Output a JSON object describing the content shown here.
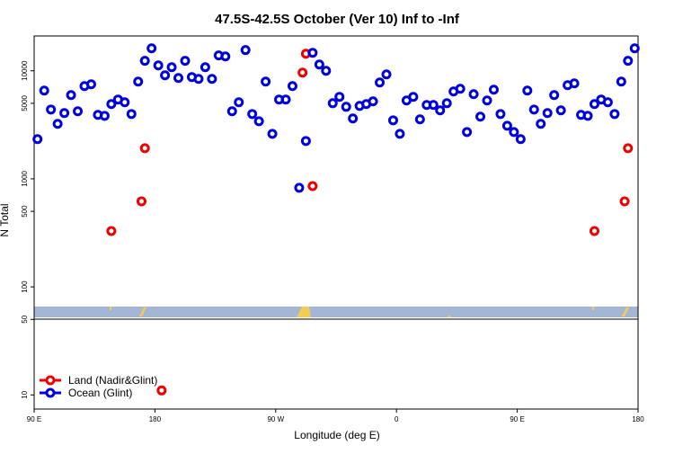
{
  "chart_data": {
    "type": "scatter",
    "title": "47.5S-42.5S October (Ver 10)   Inf to -Inf",
    "x_label": "Longitude (deg E)",
    "y_label": "N Total",
    "y_scale": "log",
    "legend": "lower left",
    "xlim": [
      90,
      540
    ],
    "xticks": [
      {
        "value": 90,
        "label": "90 E"
      },
      180,
      {
        "value": 270,
        "label": "90 W"
      },
      {
        "value": 360,
        "label": "0"
      },
      {
        "value": 450,
        "label": "90 E"
      },
      {
        "value": 540,
        "label": "180"
      }
    ],
    "ylim": [
      7.4,
      21000
    ],
    "yticks": [
      10,
      50,
      100,
      500,
      1000,
      5000,
      10000
    ],
    "series": [
      {
        "name": "Land (Nadir&Glint)",
        "color": "#ee0000",
        "x": [
          147.5,
          170,
          172.5,
          290,
          292.5,
          297.5,
          507.5,
          530,
          532.5,
          185
        ],
        "values": [
          329,
          619,
          1920,
          9620,
          14390,
          857,
          329,
          619,
          1920,
          11
        ]
      },
      {
        "name": "Ocean (Glint)",
        "color": "#0000dd",
        "x": [
          92.5,
          97.5,
          102.5,
          107.5,
          112.5,
          117.5,
          122.5,
          127.5,
          132.5,
          137.5,
          142.5,
          147.5,
          152.5,
          157.5,
          162.5,
          167.5,
          172.5,
          177.5,
          182.5,
          187.5,
          192.5,
          197.5,
          202.5,
          207.5,
          212.5,
          217.5,
          222.5,
          227.5,
          232.5,
          237.5,
          242.5,
          247.5,
          252.5,
          257.5,
          262.5,
          267.5,
          272.5,
          277.5,
          282.5,
          287.5,
          292.5,
          297.5,
          302.5,
          307.5,
          312.5,
          317.5,
          322.5,
          327.5,
          332.5,
          337.5,
          342.5,
          347.5,
          352.5,
          357.5,
          362.5,
          367.5,
          372.5,
          377.5,
          382.5,
          387.5,
          392.5,
          397.5,
          402.5,
          407.5,
          412.5,
          417.5,
          422.5,
          427.5,
          432.5,
          437.5,
          442.5,
          447.5,
          452.5,
          457.5,
          462.5,
          467.5,
          472.5,
          477.5,
          482.5,
          487.5,
          492.5,
          497.5,
          502.5,
          507.5,
          512.5,
          517.5,
          522.5,
          527.5,
          532.5,
          537.5
        ],
        "values": [
          2330,
          6560,
          4380,
          3230,
          4060,
          5960,
          4220,
          7220,
          7500,
          3910,
          3830,
          4920,
          5420,
          5110,
          3980,
          7940,
          12360,
          16150,
          11220,
          9090,
          10800,
          8580,
          12360,
          8750,
          8410,
          10800,
          8410,
          13870,
          13590,
          4220,
          5110,
          15550,
          3980,
          3410,
          7940,
          2610,
          5420,
          5420,
          7220,
          826,
          2240,
          14680,
          11440,
          10000,
          5010,
          5740,
          4640,
          3620,
          4730,
          4920,
          5210,
          7790,
          9260,
          3480,
          2610,
          5310,
          5740,
          3550,
          4830,
          4830,
          4300,
          5010,
          6430,
          6810,
          2710,
          6070,
          3760,
          5310,
          6680,
          3980,
          3100,
          2710,
          2330,
          6560,
          4380,
          3230,
          4060,
          5960,
          4300,
          7360,
          7650,
          3910,
          3830,
          4920,
          5420,
          5110,
          3980,
          7940,
          12360,
          16150
        ]
      }
    ]
  }
}
